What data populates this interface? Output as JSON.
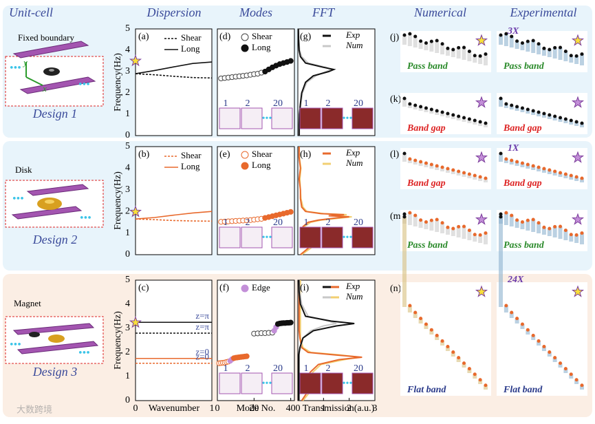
{
  "headers": [
    "Unit-cell",
    "Dispersion",
    "Modes",
    "FFT",
    "Numerical",
    "Experimental"
  ],
  "axes": {
    "ylim": [
      0,
      5
    ],
    "yticks": [
      0,
      1,
      2,
      3,
      4,
      5
    ],
    "ylabel": "Frequency(Hz)",
    "dispersion": {
      "xlim": [
        0,
        1
      ],
      "xticks": [
        0,
        1
      ],
      "xlabel": "Wavenumber",
      "x": [
        0,
        0.25,
        0.5,
        0.75,
        1
      ]
    },
    "fft": {
      "xlim": [
        0,
        3
      ],
      "xticks": [
        0,
        1,
        2,
        3
      ],
      "xlabel": "Transmission(a.u.)"
    },
    "modes": {
      "xticks": [
        0,
        20,
        40
      ],
      "xlabel": "Mode No."
    }
  },
  "rows": [
    {
      "design": "Design 1",
      "unit_texts": [
        "Fixed boundary",
        "y",
        "x"
      ],
      "dispersion": {
        "label": "(a)",
        "legend": [
          {
            "text": "Shear",
            "dash": true
          },
          {
            "text": "Long",
            "dash": false
          }
        ],
        "series": [
          {
            "dash": true,
            "color": "#111",
            "values": [
              2.9,
              2.85,
              2.78,
              2.72,
              2.7
            ]
          },
          {
            "dash": false,
            "color": "#111",
            "values": [
              2.9,
              3.05,
              3.22,
              3.38,
              3.45
            ]
          }
        ]
      },
      "modes": {
        "label": "(d)",
        "xlim": [
          0,
          21
        ],
        "insets": [
          "1",
          "2",
          "20"
        ],
        "legend": [
          {
            "text": "Shear",
            "fill": "#fff",
            "stroke": "#444"
          },
          {
            "text": "Long",
            "fill": "#111",
            "stroke": "#111"
          }
        ],
        "series": [
          {
            "fill": "#fff",
            "stroke": "#444",
            "x": [
              1,
              2,
              3,
              4,
              5,
              6,
              7,
              8,
              9,
              10,
              11,
              12
            ],
            "values": [
              2.68,
              2.7,
              2.72,
              2.74,
              2.76,
              2.78,
              2.8,
              2.82,
              2.85,
              2.88,
              2.9,
              2.95
            ]
          },
          {
            "fill": "#111",
            "stroke": "#111",
            "x": [
              13,
              14,
              15,
              16,
              17,
              18,
              19,
              20
            ],
            "values": [
              3.0,
              3.1,
              3.2,
              3.28,
              3.35,
              3.4,
              3.45,
              3.5
            ]
          }
        ]
      },
      "fft": {
        "label": "(g)",
        "insets": [
          "1",
          "2",
          "20"
        ],
        "legend": [
          {
            "text": "Exp",
            "colors": [
              "#111"
            ]
          },
          {
            "text": "Num",
            "colors": [
              "#c8c8c8"
            ]
          }
        ],
        "freq": [
          0,
          0.5,
          1,
          1.5,
          2,
          2.5,
          2.8,
          3,
          3.1,
          3.2,
          3.4,
          3.7,
          4,
          4.5,
          5
        ],
        "series": [
          {
            "color": "#c8c8c8",
            "values": [
              0.06,
              0.06,
              0.07,
              0.12,
              0.18,
              0.35,
              0.7,
              1.1,
              1.3,
              1.1,
              0.4,
              0.15,
              0.07,
              0.04,
              0.03
            ]
          },
          {
            "color": "#111",
            "values": [
              0.05,
              0.05,
              0.06,
              0.1,
              0.15,
              0.3,
              0.6,
              1.2,
              1.4,
              1.0,
              0.3,
              0.1,
              0.05,
              0.03,
              0.02
            ]
          }
        ]
      },
      "right": [
        {
          "label": "(j)",
          "texts": [
            "Pass band",
            "Pass band"
          ],
          "kind": "pass",
          "color": "#111",
          "tint": "#ccc"
        },
        {
          "label": "(k)",
          "texts": [
            "Band gap",
            "Band gap"
          ],
          "kind": "gap",
          "color": "#111",
          "tint": "#ccc"
        }
      ],
      "scale": "3X"
    },
    {
      "design": "Design 2",
      "unit_texts": [
        "Disk"
      ],
      "dispersion": {
        "label": "(b)",
        "legend": [
          {
            "text": "Shear",
            "dash": true
          },
          {
            "text": "Long",
            "dash": false
          }
        ],
        "series": [
          {
            "dash": true,
            "color": "#e8692c",
            "values": [
              1.65,
              1.62,
              1.58,
              1.56,
              1.55
            ]
          },
          {
            "dash": false,
            "color": "#e8692c",
            "values": [
              1.65,
              1.72,
              1.83,
              1.93,
              2.0
            ]
          }
        ]
      },
      "modes": {
        "label": "(e)",
        "xlim": [
          0,
          21
        ],
        "insets": [
          "1",
          "2",
          "20"
        ],
        "legend": [
          {
            "text": "Shear",
            "fill": "#fff",
            "stroke": "#e8692c"
          },
          {
            "text": "Long",
            "fill": "#e8692c",
            "stroke": "#e8692c"
          }
        ],
        "series": [
          {
            "fill": "#fff",
            "stroke": "#e8692c",
            "x": [
              1,
              2,
              3,
              4,
              5,
              6,
              7,
              8,
              9,
              10,
              11,
              12
            ],
            "values": [
              1.52,
              1.53,
              1.54,
              1.55,
              1.56,
              1.57,
              1.58,
              1.59,
              1.6,
              1.62,
              1.64,
              1.66
            ]
          },
          {
            "fill": "#e8692c",
            "stroke": "#e8692c",
            "x": [
              13,
              14,
              15,
              16,
              17,
              18,
              19,
              20
            ],
            "values": [
              1.7,
              1.74,
              1.78,
              1.82,
              1.86,
              1.9,
              1.94,
              1.98
            ]
          }
        ]
      },
      "fft": {
        "label": "(h)",
        "insets": [
          "1",
          "2",
          "20"
        ],
        "legend": [
          {
            "text": "Exp",
            "colors": [
              "#e8692c"
            ]
          },
          {
            "text": "Num",
            "colors": [
              "#f2cf72"
            ]
          }
        ],
        "freq": [
          0,
          0.3,
          0.6,
          1,
          1.3,
          1.5,
          1.6,
          1.7,
          1.75,
          1.8,
          1.85,
          1.9,
          2.0,
          2.2,
          2.6,
          3,
          3.5,
          4,
          4.5,
          5
        ],
        "series": [
          {
            "color": "#f2cf72",
            "values": [
              0.15,
              0.5,
              0.15,
              0.35,
              0.25,
              0.5,
              0.9,
              1.7,
              2.1,
              1.4,
              1.9,
              1.0,
              0.35,
              0.2,
              0.12,
              0.1,
              0.08,
              0.12,
              0.06,
              0.05
            ]
          },
          {
            "color": "#e8692c",
            "values": [
              0.1,
              0.4,
              0.1,
              0.3,
              0.2,
              0.4,
              0.8,
              1.5,
              2.0,
              1.2,
              1.8,
              0.9,
              0.3,
              0.15,
              0.1,
              0.1,
              0.05,
              0.1,
              0.05,
              0.05
            ]
          }
        ]
      },
      "right": [
        {
          "label": "(l)",
          "texts": [
            "Band gap",
            "Band gap"
          ],
          "kind": "gap",
          "color": "#e8692c",
          "tint": "#ccc"
        },
        {
          "label": "(m)",
          "texts": [
            "Pass band",
            "Pass band"
          ],
          "kind": "pass",
          "color": "#e8692c",
          "tint": "#ccc"
        }
      ],
      "scale": "1X"
    },
    {
      "design": "Design 3",
      "unit_texts": [
        "Magnet"
      ],
      "dispersion": {
        "label": "(c)",
        "legend": [],
        "series": [
          {
            "dash": false,
            "color": "#111",
            "values": [
              3.25,
              3.25,
              3.25,
              3.25,
              3.25
            ],
            "note": "z=π"
          },
          {
            "dash": true,
            "color": "#111",
            "values": [
              2.8,
              2.8,
              2.8,
              2.8,
              2.8
            ],
            "note": "z=π"
          },
          {
            "dash": false,
            "color": "#e8692c",
            "values": [
              1.75,
              1.75,
              1.75,
              1.75,
              1.75
            ],
            "note": "z=0"
          },
          {
            "dash": true,
            "color": "#e8692c",
            "values": [
              1.55,
              1.55,
              1.55,
              1.55,
              1.55
            ],
            "note": "z=0"
          }
        ]
      },
      "modes": {
        "label": "(f)",
        "xlim": [
          0,
          42
        ],
        "insets": [
          "1",
          "2",
          "20"
        ],
        "legend": [
          {
            "text": "Edge",
            "fill": "#c38fd8",
            "stroke": "#c38fd8"
          }
        ],
        "series": [
          {
            "fill": "#fff",
            "stroke": "#e8692c",
            "x": [
              1,
              2,
              3,
              4,
              5,
              6
            ],
            "values": [
              1.55,
              1.56,
              1.57,
              1.58,
              1.6,
              1.62
            ]
          },
          {
            "fill": "#c38fd8",
            "stroke": "#c38fd8",
            "x": [
              7,
              8
            ],
            "values": [
              1.65,
              1.72
            ]
          },
          {
            "fill": "#e8692c",
            "stroke": "#e8692c",
            "x": [
              9,
              10,
              11,
              12,
              13,
              14,
              15,
              16
            ],
            "values": [
              1.76,
              1.78,
              1.79,
              1.8,
              1.81,
              1.82,
              1.83,
              1.84
            ]
          },
          {
            "fill": "#fff",
            "stroke": "#444",
            "x": [
              20,
              22,
              24,
              26,
              28,
              30
            ],
            "values": [
              2.78,
              2.79,
              2.8,
              2.8,
              2.81,
              2.82
            ]
          },
          {
            "fill": "#c38fd8",
            "stroke": "#c38fd8",
            "x": [
              31,
              32
            ],
            "values": [
              2.9,
              3.05
            ]
          },
          {
            "fill": "#111",
            "stroke": "#111",
            "x": [
              33,
              34,
              35,
              36,
              37,
              38,
              39,
              40
            ],
            "values": [
              3.18,
              3.2,
              3.21,
              3.22,
              3.22,
              3.23,
              3.23,
              3.24
            ]
          }
        ]
      },
      "fft": {
        "label": "(i)",
        "insets": [
          "1",
          "2",
          "20"
        ],
        "legend": [
          {
            "text": "Exp",
            "colors": [
              "#111",
              "#e8692c"
            ]
          },
          {
            "text": "Num",
            "colors": [
              "#c8c8c8",
              "#f2cf72"
            ]
          }
        ],
        "freq": [
          0,
          0.4,
          0.8,
          1.2,
          1.5,
          1.7,
          1.8,
          1.9,
          2.0,
          2.2,
          2.6,
          2.9,
          3.1,
          3.2,
          3.3,
          3.5,
          4,
          4.5,
          5
        ],
        "series": [
          {
            "color": "#f2cf72",
            "values": [
              0.2,
              0.5,
              0.3,
              0.6,
              0.9,
              1.8,
              2.4,
              1.6,
              0.5,
              0.2,
              0.1,
              0.1,
              0.1,
              0.1,
              0.1,
              0.1,
              0.1,
              0.1,
              0.1
            ]
          },
          {
            "color": "#e8692c",
            "values": [
              0.15,
              0.4,
              0.2,
              0.5,
              0.8,
              1.6,
              2.5,
              1.4,
              0.4,
              0.15,
              0.08,
              0.05,
              0.05,
              0.05,
              0.05,
              0.05,
              0.05,
              0.05,
              0.05
            ]
          },
          {
            "color": "#c8c8c8",
            "values": [
              0.05,
              0.05,
              0.05,
              0.05,
              0.05,
              0.05,
              0.05,
              0.05,
              0.06,
              0.1,
              0.2,
              0.5,
              1.0,
              1.5,
              1.2,
              0.4,
              0.15,
              0.08,
              0.05
            ]
          },
          {
            "color": "#111",
            "values": [
              0.04,
              0.04,
              0.04,
              0.04,
              0.04,
              0.04,
              0.04,
              0.04,
              0.05,
              0.08,
              0.2,
              0.6,
              1.5,
              2.2,
              1.3,
              0.3,
              0.1,
              0.05,
              0.04
            ]
          }
        ]
      },
      "right": [
        {
          "label": "(n)",
          "texts": [
            "Flat band",
            "Flat band"
          ],
          "kind": "flat",
          "color": "#e8692c",
          "tint": "#d8c080"
        }
      ],
      "scale": "24X"
    }
  ],
  "watermark": "大数跨境"
}
